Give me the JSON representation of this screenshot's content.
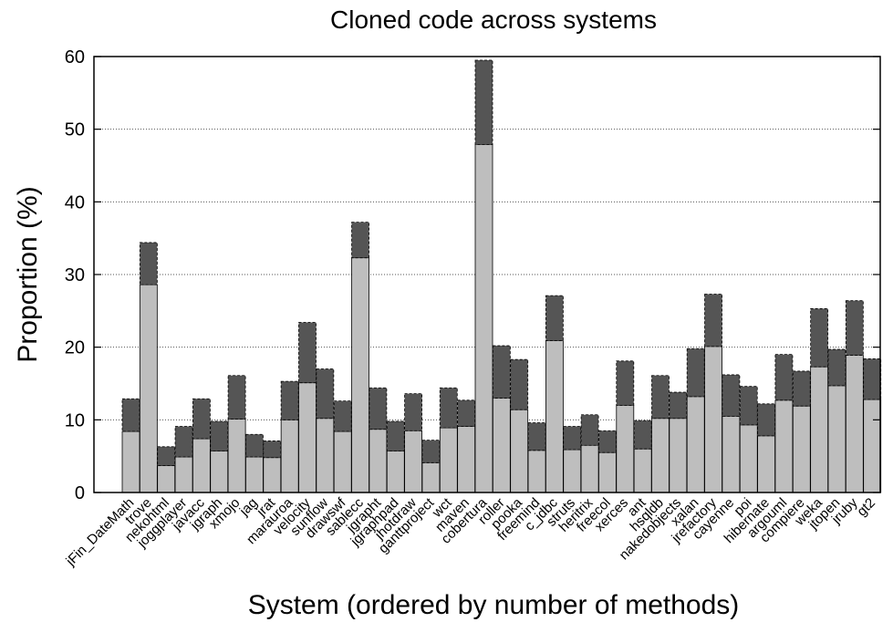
{
  "chart_data": {
    "type": "bar",
    "stacked": true,
    "title": "Cloned code across systems",
    "xlabel": "System (ordered by number of methods)",
    "ylabel": "Proportion (%)",
    "ylim": [
      0,
      60
    ],
    "yticks": [
      0,
      10,
      20,
      30,
      40,
      50,
      60
    ],
    "grid": "horizontal dotted",
    "categories": [
      "jFin_DateMath",
      "trove",
      "nekohtml",
      "joggplayer",
      "javacc",
      "jgraph",
      "xmojo",
      "jag",
      "jrat",
      "marauroa",
      "velocity",
      "sunflow",
      "drawswf",
      "sablecc",
      "jgrapht",
      "jgraphpad",
      "jhotdraw",
      "ganttproject",
      "wct",
      "maven",
      "cobertura",
      "roller",
      "pooka",
      "freemind",
      "c_jdbc",
      "struts",
      "heritrix",
      "freecol",
      "xerces",
      "ant",
      "hsqldb",
      "nakedobjects",
      "xalan",
      "jrefactory",
      "cayenne",
      "poi",
      "hibernate",
      "argouml",
      "compiere",
      "weka",
      "jtopen",
      "jruby",
      "gt2"
    ],
    "series": [
      {
        "values": [
          8.4,
          28.6,
          3.7,
          4.9,
          7.4,
          5.7,
          10.1,
          4.9,
          4.8,
          10.0,
          15.1,
          10.2,
          8.4,
          32.3,
          8.7,
          5.7,
          8.5,
          4.1,
          8.9,
          9.1,
          47.9,
          13.0,
          11.4,
          5.8,
          20.9,
          5.9,
          6.5,
          5.5,
          12.0,
          6.0,
          10.2,
          10.2,
          13.2,
          20.1,
          10.5,
          9.3,
          7.8,
          12.7,
          11.9,
          17.3,
          14.7,
          18.9,
          12.8
        ]
      },
      {
        "values": [
          4.5,
          5.8,
          2.6,
          4.2,
          5.5,
          4.1,
          6.0,
          3.1,
          2.3,
          5.3,
          8.3,
          6.8,
          4.2,
          4.9,
          5.7,
          4.1,
          5.1,
          3.1,
          5.5,
          3.6,
          11.6,
          7.2,
          6.9,
          3.8,
          6.2,
          3.2,
          4.2,
          3.0,
          6.1,
          3.9,
          5.9,
          3.6,
          6.6,
          7.2,
          5.7,
          5.3,
          4.4,
          6.3,
          4.8,
          8.0,
          5.0,
          7.5,
          5.6
        ]
      }
    ],
    "colors": {
      "lower": "#bebebe",
      "upper": "#555555",
      "outline": "#000000"
    }
  }
}
